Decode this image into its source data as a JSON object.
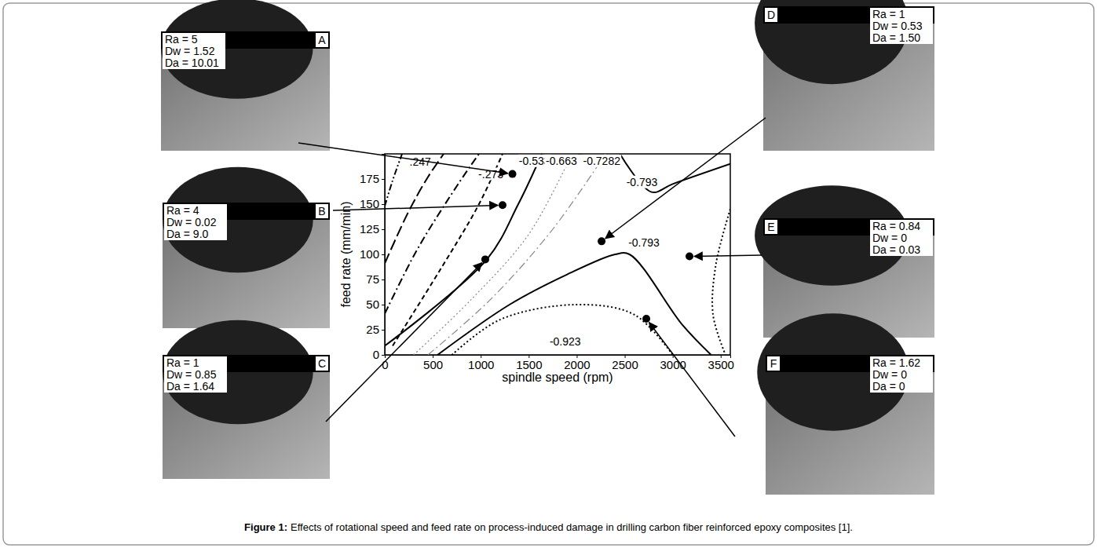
{
  "chart_data": {
    "type": "contour",
    "x_label": "spindle speed (rpm)",
    "y_label": "feed rate (mm/min)",
    "xlim": [
      0,
      3600
    ],
    "ylim": [
      0,
      200
    ],
    "xticks": [
      0,
      500,
      1000,
      1500,
      2000,
      2500,
      3000,
      3500
    ],
    "yticks": [
      0,
      25,
      50,
      75,
      100,
      125,
      150,
      175
    ],
    "contours": [
      {
        "line_style": "dash-dot-dot",
        "color": "#000000",
        "x": [
          0,
          80,
          180
        ],
        "y": [
          148,
          173,
          200
        ]
      },
      {
        "line_style": "long-dash",
        "color": "#000000",
        "x": [
          0,
          245,
          450,
          614
        ],
        "y": [
          91,
          142,
          177,
          200
        ]
      },
      {
        "line_style": "dash-dot",
        "color": "#000000",
        "x": [
          0,
          327,
          655,
          900,
          982
        ],
        "y": [
          41,
          103,
          154,
          189,
          200
        ]
      },
      {
        "line_style": "dash",
        "color": "#000000",
        "x": [
          82,
          573,
          982,
          1227
        ],
        "y": [
          9,
          84,
          150,
          200
        ]
      },
      {
        "line_style": "solid",
        "color": "#000000",
        "x": [
          0,
          1064,
          1391,
          1637
        ],
        "y": [
          9,
          95,
          150,
          200
        ]
      },
      {
        "line_style": "dot",
        "color": "#888888",
        "x": [
          300,
          900,
          1500,
          1950
        ],
        "y": [
          0,
          55,
          120,
          200
        ]
      },
      {
        "line_style": "dash-dot",
        "color": "#888888",
        "x": [
          450,
          1100,
          1750,
          2300
        ],
        "y": [
          0,
          55,
          125,
          200
        ]
      },
      {
        "line_style": "solid",
        "color": "#000000",
        "x": [
          550,
          1300,
          1900,
          2400,
          2550,
          3100,
          3400
        ],
        "y": [
          0,
          50,
          80,
          100,
          100,
          30,
          0
        ]
      },
      {
        "line_style": "solid",
        "color": "#000000",
        "x": [
          2450,
          2780,
          3000,
          3600
        ],
        "y": [
          200,
          162,
          170,
          190
        ]
      },
      {
        "line_style": "dot",
        "color": "#000000",
        "x": [
          700,
          1200,
          2000,
          2600,
          3000
        ],
        "y": [
          0,
          35,
          50,
          40,
          0
        ]
      },
      {
        "line_style": "dot",
        "color": "#000000",
        "x": [
          3600,
          3450,
          3420,
          3550
        ],
        "y": [
          145,
          90,
          40,
          0
        ]
      }
    ],
    "annotations": [
      {
        "text": ".247",
        "x": 370,
        "y": 192
      },
      {
        "text": "-.273",
        "x": 1105,
        "y": 180
      },
      {
        "text": "-0.533",
        "x": 1560,
        "y": 193
      },
      {
        "text": "-0.663",
        "x": 1840,
        "y": 193
      },
      {
        "text": "-0.7282",
        "x": 2260,
        "y": 193
      },
      {
        "text": "-0.793",
        "x": 2680,
        "y": 172
      },
      {
        "text": "-0.793",
        "x": 2700,
        "y": 112
      },
      {
        "text": "-0.923",
        "x": 1880,
        "y": 13
      }
    ],
    "points": {
      "x": [
        1330,
        1227,
        1047,
        2259,
        3175,
        2725
      ],
      "y": [
        180,
        149,
        95,
        113,
        98,
        36
      ]
    },
    "insets": [
      {
        "letter": "A",
        "lines": [
          "Ra = 5",
          "Dw = 1.52",
          "Da = 10.01"
        ]
      },
      {
        "letter": "B",
        "lines": [
          "Ra = 4",
          "Dw = 0.02",
          "Da = 9.0"
        ]
      },
      {
        "letter": "C",
        "lines": [
          "Ra = 1",
          "Dw = 0.85",
          "Da = 1.64"
        ]
      },
      {
        "letter": "D",
        "lines": [
          "Ra = 1",
          "Dw = 0.53",
          "Da = 1.50"
        ]
      },
      {
        "letter": "E",
        "lines": [
          "Ra = 0.84",
          "Dw = 0",
          "Da = 0.03"
        ]
      },
      {
        "letter": "F",
        "lines": [
          "Ra = 1.62",
          "Dw = 0",
          "Da = 0"
        ]
      }
    ],
    "caption_label": "Figure 1:",
    "caption": "Effects of rotational speed and feed rate on process-induced damage in drilling carbon fiber reinforced epoxy composites [1]."
  }
}
